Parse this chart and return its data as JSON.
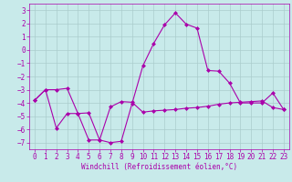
{
  "xlabel": "Windchill (Refroidissement éolien,°C)",
  "bg_color": "#c8eaea",
  "line_color": "#aa00aa",
  "grid_color": "#aacccc",
  "x": [
    0,
    1,
    2,
    3,
    4,
    5,
    6,
    7,
    8,
    9,
    10,
    11,
    12,
    13,
    14,
    15,
    16,
    17,
    18,
    19,
    20,
    21,
    22,
    23
  ],
  "line1": [
    -3.8,
    -3.0,
    -5.9,
    -4.8,
    -4.8,
    -6.8,
    -6.8,
    -4.3,
    -3.9,
    -3.95,
    -4.7,
    -4.6,
    -4.55,
    -4.5,
    -4.4,
    -4.35,
    -4.25,
    -4.1,
    -4.0,
    -3.95,
    -3.9,
    -3.85,
    -4.35,
    -4.5
  ],
  "line2": [
    -3.8,
    -3.0,
    -3.0,
    -2.9,
    -4.8,
    -4.75,
    -6.8,
    -7.0,
    -6.9,
    -4.05,
    -1.2,
    0.5,
    1.9,
    2.8,
    1.95,
    1.65,
    -1.55,
    -1.6,
    -2.5,
    -4.0,
    -4.0,
    -4.0,
    -3.25,
    -4.5
  ],
  "ylim": [
    -7.5,
    3.5
  ],
  "yticks": [
    -7,
    -6,
    -5,
    -4,
    -3,
    -2,
    -1,
    0,
    1,
    2,
    3
  ],
  "xticks": [
    0,
    1,
    2,
    3,
    4,
    5,
    6,
    7,
    8,
    9,
    10,
    11,
    12,
    13,
    14,
    15,
    16,
    17,
    18,
    19,
    20,
    21,
    22,
    23
  ],
  "tick_fontsize": 5.5,
  "label_fontsize": 5.5,
  "marker_size": 2.5,
  "line_width": 0.8
}
